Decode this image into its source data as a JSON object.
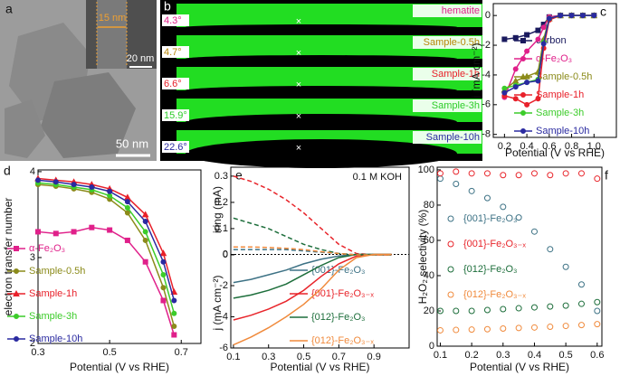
{
  "figure_images": {
    "a": {
      "label": "a",
      "inset_scale": "15 nm",
      "inset_bar": "20 nm",
      "scale_bar": "50 nm"
    },
    "b": {
      "label": "b",
      "rows": [
        {
          "angle": "4.3°",
          "sample": "hematite"
        },
        {
          "angle": "4.7°",
          "sample": "Sample-0.5h"
        },
        {
          "angle": "6.6°",
          "sample": "Sample-1h"
        },
        {
          "angle": "15.9°",
          "sample": "Sample-3h"
        },
        {
          "angle": "22.6°",
          "sample": "Sample-10h"
        }
      ]
    }
  },
  "chart_data": [
    {
      "type": "line",
      "panel": "c",
      "markers": true,
      "x_label": "Potential (V vs RHE)",
      "y_label": "j (mA cm⁻²)",
      "x": [
        0.2,
        0.3,
        0.4,
        0.5,
        0.55,
        0.6,
        0.7,
        0.8,
        0.9,
        1.0
      ],
      "xlim": [
        0.1,
        1.2
      ],
      "xticks": [
        0.2,
        0.4,
        0.6,
        0.8,
        {
          "value": 1,
          "label": "1.0"
        }
      ],
      "ylim": [
        -8.2,
        0.8
      ],
      "yticks": [
        0,
        -2,
        -4,
        -6,
        -8
      ],
      "series": [
        {
          "name": "carbon",
          "color": "#1a1a5e",
          "values": [
            -1.6,
            -1.5,
            -1.3,
            -1.0,
            -0.6,
            -0.1,
            0,
            0,
            0,
            0
          ]
        },
        {
          "name": "α-Fe₂O₃",
          "color": "#e0208a",
          "values": [
            -5.5,
            -3.6,
            -2.4,
            -1.6,
            -0.8,
            -0.1,
            0,
            0,
            0,
            0
          ]
        },
        {
          "name": "Sample-0.5h",
          "color": "#8b8b1a",
          "values": [
            -5.0,
            -4.4,
            -4.1,
            -3.8,
            -1.6,
            -0.2,
            0,
            0,
            0,
            0
          ]
        },
        {
          "name": "Sample-1h",
          "color": "#e8202a",
          "values": [
            -5.4,
            -5.6,
            -6.0,
            -5.6,
            -2.2,
            -0.3,
            0,
            0,
            0,
            0
          ]
        },
        {
          "name": "Sample-3h",
          "color": "#3ccc2a",
          "values": [
            -4.9,
            -4.7,
            -4.5,
            -4.3,
            -1.8,
            -0.2,
            0,
            0,
            0,
            0
          ]
        },
        {
          "name": "Sample-10h",
          "color": "#2a2aa0",
          "values": [
            -5.2,
            -4.8,
            -4.5,
            -4.4,
            -1.9,
            -0.2,
            0,
            0,
            0,
            0
          ]
        }
      ]
    },
    {
      "type": "line",
      "panel": "d",
      "markers": true,
      "x_label": "Potential (V vs RHE)",
      "y_label": "electron transfer number",
      "x": [
        0.3,
        0.35,
        0.4,
        0.45,
        0.5,
        0.55,
        0.6,
        0.65,
        0.68
      ],
      "xlim": [
        0.3,
        0.755
      ],
      "xticks": [
        0.3,
        0.5,
        0.7
      ],
      "ylim": [
        2,
        4.02
      ],
      "yticks": [
        2,
        3,
        4
      ],
      "series": [
        {
          "name": "α-Fe₂O₃",
          "color": "#e0208a",
          "values": [
            3.3,
            3.28,
            3.3,
            3.35,
            3.32,
            3.2,
            2.95,
            2.5,
            2.1
          ]
        },
        {
          "name": "Sample-0.5h",
          "color": "#8b8b1a",
          "values": [
            3.85,
            3.83,
            3.8,
            3.76,
            3.68,
            3.52,
            3.2,
            2.65,
            2.2
          ]
        },
        {
          "name": "Sample-1h",
          "color": "#e8202a",
          "values": [
            3.92,
            3.9,
            3.88,
            3.85,
            3.8,
            3.7,
            3.5,
            3.05,
            2.6
          ]
        },
        {
          "name": "Sample-3h",
          "color": "#3ccc2a",
          "values": [
            3.87,
            3.85,
            3.82,
            3.79,
            3.72,
            3.58,
            3.3,
            2.8,
            2.35
          ]
        },
        {
          "name": "Sample-10h",
          "color": "#2a2aa0",
          "values": [
            3.9,
            3.88,
            3.85,
            3.82,
            3.77,
            3.65,
            3.42,
            2.95,
            2.5
          ]
        }
      ]
    },
    {
      "type": "line",
      "panel": "e",
      "markers": false,
      "x_label": "Potential (V vs RHE)",
      "y_label": "j (mA cm⁻²)",
      "y2_label": "iring (mA)",
      "annotation": "0.1 M KOH",
      "x": [
        0.1,
        0.2,
        0.3,
        0.4,
        0.5,
        0.6,
        0.7,
        0.8,
        0.9,
        1.0
      ],
      "xlim": [
        0.085,
        1.1
      ],
      "xticks": [
        0.1,
        0.3,
        0.5,
        0.7,
        0.9
      ],
      "ylim": [
        -6,
        5.6
      ],
      "yticks": [
        0,
        -2,
        -4,
        -6
      ],
      "y2lim": [
        -0.355,
        0.334
      ],
      "y2ticks": [
        0,
        0.1,
        0.2,
        0.3
      ],
      "series": [
        {
          "name": "{001}-Fe₂O₃",
          "color": "#3d7285",
          "values": [
            -1.8,
            -1.6,
            -1.3,
            -1.0,
            -0.6,
            -0.3,
            -0.1,
            0,
            0,
            0
          ],
          "ring_values": [
            0.02,
            0.02,
            0.02,
            0.02,
            0.015,
            0.01,
            0.005,
            0,
            0,
            0
          ]
        },
        {
          "name": "{001}-Fe₂O₃₋ₓ",
          "color": "#e8242a",
          "values": [
            -4.2,
            -3.9,
            -3.5,
            -3.0,
            -2.3,
            -1.4,
            -0.6,
            -0.1,
            0,
            0
          ],
          "ring_values": [
            0.3,
            0.28,
            0.25,
            0.21,
            0.16,
            0.1,
            0.04,
            0.005,
            0,
            0
          ]
        },
        {
          "name": "{012}-Fe₂O₃",
          "color": "#1d6e3b",
          "values": [
            -2.8,
            -2.6,
            -2.3,
            -1.9,
            -1.3,
            -0.7,
            -0.2,
            0,
            0,
            0
          ],
          "ring_values": [
            0.14,
            0.12,
            0.1,
            0.07,
            0.04,
            0.02,
            0.005,
            0,
            0,
            0
          ]
        },
        {
          "name": "{012}-Fe₂O₃₋ₓ",
          "color": "#f08a3c",
          "values": [
            -5.8,
            -5.3,
            -4.7,
            -4.0,
            -3.2,
            -2.2,
            -1.0,
            -0.2,
            0,
            0
          ],
          "ring_values": [
            0.03,
            0.03,
            0.028,
            0.025,
            0.02,
            0.012,
            0.005,
            0,
            0,
            0
          ]
        }
      ]
    },
    {
      "type": "scatter",
      "panel": "f",
      "x_label": "Potential (V vs RHE)",
      "y_label": "H₂O₂ selectivity (%)",
      "x": [
        0.1,
        0.15,
        0.2,
        0.25,
        0.3,
        0.35,
        0.4,
        0.45,
        0.5,
        0.55,
        0.6
      ],
      "xlim": [
        0.09,
        0.615
      ],
      "xticks": [
        0.1,
        0.2,
        0.3,
        0.4,
        0.5,
        0.6
      ],
      "ylim": [
        0,
        101.5
      ],
      "yticks": [
        0,
        20,
        40,
        60,
        80,
        100
      ],
      "series": [
        {
          "name": "{001}-Fe₂O₃",
          "color": "#3d7285",
          "values": [
            95,
            92,
            88,
            84,
            79,
            73,
            65,
            55,
            45,
            35,
            20
          ]
        },
        {
          "name": "{001}-Fe₂O₃₋ₓ",
          "color": "#e8242a",
          "values": [
            98,
            99,
            98,
            98,
            97,
            97,
            98,
            97,
            98,
            98,
            95
          ]
        },
        {
          "name": "{012}-Fe₂O₃",
          "color": "#1d6e3b",
          "values": [
            20,
            20,
            20,
            20.5,
            21,
            21.5,
            22,
            22.5,
            23,
            24,
            25
          ]
        },
        {
          "name": "{012}-Fe₂O₃₋ₓ",
          "color": "#f08a3c",
          "values": [
            9,
            9.2,
            9.4,
            9.6,
            10,
            10.3,
            10.6,
            11,
            11.5,
            12,
            12.5
          ]
        }
      ]
    }
  ]
}
